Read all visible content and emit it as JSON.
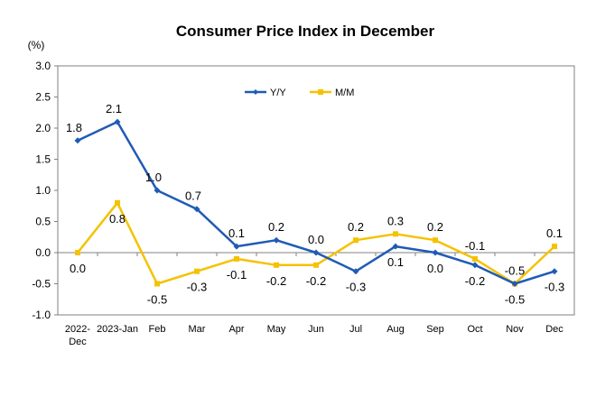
{
  "chart_data": {
    "type": "line",
    "title": "Consumer Price Index in December",
    "unit_label": "(%)",
    "xlabel": "",
    "ylabel": "",
    "categories": [
      "2022-Dec",
      "2023-Jan",
      "Feb",
      "Mar",
      "Apr",
      "May",
      "Jun",
      "Jul",
      "Aug",
      "Sep",
      "Oct",
      "Nov",
      "Dec"
    ],
    "category_display": [
      [
        "2022-",
        "Dec"
      ],
      [
        "2023-Jan"
      ],
      [
        "Feb"
      ],
      [
        "Mar"
      ],
      [
        "Apr"
      ],
      [
        "May"
      ],
      [
        "Jun"
      ],
      [
        "Jul"
      ],
      [
        "Aug"
      ],
      [
        "Sep"
      ],
      [
        "Oct"
      ],
      [
        "Nov"
      ],
      [
        "Dec"
      ]
    ],
    "ylim": [
      -1.0,
      3.0
    ],
    "yticks": [
      -1.0,
      -0.5,
      0.0,
      0.5,
      1.0,
      1.5,
      2.0,
      2.5,
      3.0
    ],
    "ytick_labels": [
      "-1.0",
      "-0.5",
      "0.0",
      "0.5",
      "1.0",
      "1.5",
      "2.0",
      "2.5",
      "3.0"
    ],
    "grid": false,
    "legend": "top-center",
    "series": [
      {
        "name": "Y/Y",
        "color": "#1f5bb5",
        "marker": "diamond",
        "values": [
          1.8,
          2.1,
          1.0,
          0.7,
          0.1,
          0.2,
          0.0,
          -0.3,
          0.1,
          0.0,
          -0.2,
          -0.5,
          -0.3
        ],
        "labels": [
          "1.8",
          "2.1",
          "1.0",
          "0.7",
          "0.1",
          "0.2",
          "0.0",
          "-0.3",
          "0.1",
          "0.0",
          "-0.2",
          "-0.5",
          "-0.3"
        ],
        "label_pos": [
          "above",
          "above",
          "above",
          "above",
          "above",
          "above",
          "above",
          "below",
          "below",
          "below",
          "below",
          "below",
          "below"
        ]
      },
      {
        "name": "M/M",
        "color": "#f5c200",
        "marker": "square",
        "values": [
          0.0,
          0.8,
          -0.5,
          -0.3,
          -0.1,
          -0.2,
          -0.2,
          0.2,
          0.3,
          0.2,
          -0.1,
          -0.5,
          0.1
        ],
        "labels": [
          "0.0",
          "0.8",
          "-0.5",
          "-0.3",
          "-0.1",
          "-0.2",
          "-0.2",
          "0.2",
          "0.3",
          "0.2",
          "-0.1",
          "-0.5",
          "0.1"
        ],
        "label_pos": [
          "below",
          "below",
          "below",
          "below",
          "below",
          "below",
          "below",
          "above",
          "above",
          "above",
          "above",
          "above",
          "above"
        ]
      }
    ]
  }
}
